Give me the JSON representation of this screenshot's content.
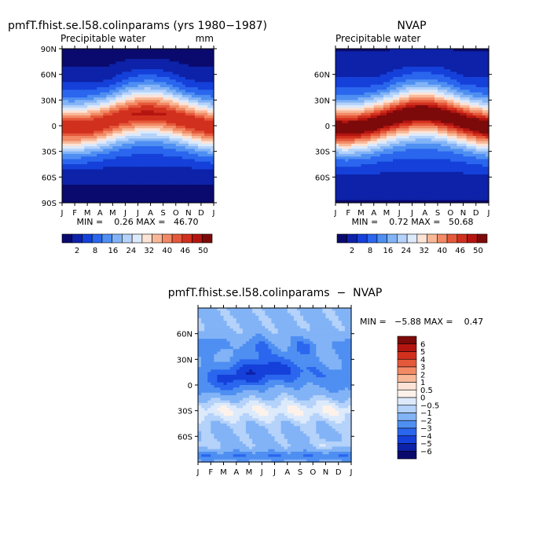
{
  "chart_data": [
    {
      "type": "heatmap",
      "title": "pmfT.fhist.se.l58.colinparams (yrs 1980−1987)",
      "subtitle": "Precipitable water",
      "units": "mm",
      "x_ticks": [
        "J",
        "F",
        "M",
        "A",
        "M",
        "J",
        "J",
        "A",
        "S",
        "O",
        "N",
        "D",
        "J"
      ],
      "y_ticks": [
        "90N",
        "60N",
        "30N",
        "0",
        "30S",
        "60S",
        "90S"
      ],
      "stats": "MIN =    0.26 MAX =   46.70",
      "colorbar": {
        "levels": [
          "2",
          "8",
          "16",
          "24",
          "32",
          "40",
          "46",
          "50"
        ],
        "colors": [
          "#0a0a6e",
          "#0d22a8",
          "#1540d9",
          "#2a66ee",
          "#4f8ff2",
          "#82b3f6",
          "#b4d2fa",
          "#dceafc",
          "#fde3d6",
          "#f8b898",
          "#f28a66",
          "#e5593b",
          "#d2301e",
          "#b41510",
          "#7d0a0a"
        ]
      }
    },
    {
      "type": "heatmap",
      "title": "NVAP",
      "subtitle": "Precipitable water",
      "x_ticks": [
        "J",
        "F",
        "M",
        "A",
        "M",
        "J",
        "J",
        "A",
        "S",
        "O",
        "N",
        "D",
        "J"
      ],
      "y_ticks": [
        "60N",
        "30N",
        "0",
        "30S",
        "60S"
      ],
      "stats": "MIN =    0.72 MAX =   50.68",
      "colorbar": {
        "levels": [
          "2",
          "8",
          "16",
          "24",
          "32",
          "40",
          "46",
          "50"
        ],
        "colors": [
          "#0a0a6e",
          "#0d22a8",
          "#1540d9",
          "#2a66ee",
          "#4f8ff2",
          "#82b3f6",
          "#b4d2fa",
          "#dceafc",
          "#fde3d6",
          "#f8b898",
          "#f28a66",
          "#e5593b",
          "#d2301e",
          "#b41510",
          "#7d0a0a"
        ]
      }
    },
    {
      "type": "heatmap",
      "title": "pmfT.fhist.se.l58.colinparams  −  NVAP",
      "x_ticks": [
        "J",
        "F",
        "M",
        "A",
        "M",
        "J",
        "J",
        "A",
        "S",
        "O",
        "N",
        "D",
        "J"
      ],
      "y_ticks": [
        "60N",
        "30N",
        "0",
        "30S",
        "60S"
      ],
      "stats": "MIN =   −5.88 MAX =    0.47",
      "colorbar": {
        "levels": [
          "6",
          "5",
          "4",
          "3",
          "2",
          "1",
          "0.5",
          "0",
          "−0.5",
          "−1",
          "−2",
          "−3",
          "−4",
          "−5",
          "−6"
        ],
        "colors": [
          "#7d0a0a",
          "#b41510",
          "#d2301e",
          "#e5593b",
          "#f28a66",
          "#f8b898",
          "#fde3d6",
          "#fdf2ea",
          "#dceafc",
          "#b4d2fa",
          "#82b3f6",
          "#4f8ff2",
          "#2a66ee",
          "#1540d9",
          "#0d22a8",
          "#0a0a6e"
        ]
      }
    }
  ]
}
